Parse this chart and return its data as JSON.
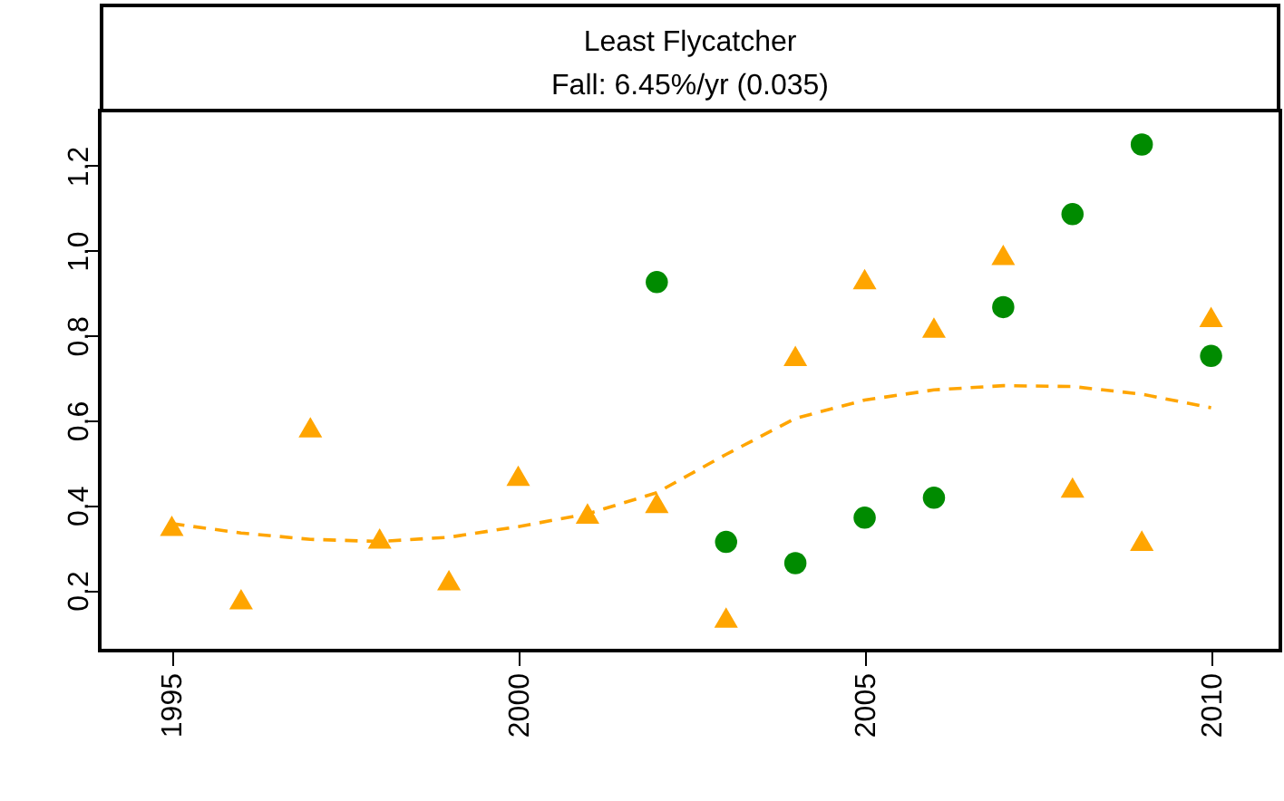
{
  "chart_data": {
    "type": "scatter",
    "title": "Least Flycatcher",
    "subtitle": "Fall: 6.45%/yr (0.035)",
    "xlim": [
      1993.96,
      2011
    ],
    "xticks": [
      1995,
      2000,
      2005,
      2010
    ],
    "ylim": [
      0.058,
      1.33
    ],
    "yticks": [
      0.2,
      0.4,
      0.6,
      0.8,
      {
        "value": 1,
        "label": "1.0"
      },
      1.2
    ],
    "grid": false,
    "series": [
      {
        "marker": "circle",
        "color": "#008b00",
        "x": [
          2002,
          2003,
          2004,
          2005,
          2006,
          2007,
          2008,
          2009,
          2010
        ],
        "values": [
          0.926,
          0.314,
          0.264,
          0.371,
          0.418,
          0.867,
          1.086,
          1.25,
          0.752
        ]
      },
      {
        "marker": "triangle",
        "color": "#ffa500",
        "x": [
          1995,
          1996,
          1997,
          1998,
          1999,
          2000,
          2001,
          2002,
          2003,
          2004,
          2005,
          2006,
          2007,
          2008,
          2009,
          2010
        ],
        "values": [
          0.352,
          0.179,
          0.584,
          0.322,
          0.224,
          0.47,
          0.381,
          0.406,
          0.136,
          0.752,
          0.933,
          0.819,
          0.99,
          0.442,
          0.317,
          0.844
        ]
      },
      {
        "type": "line",
        "marker": "none",
        "line_style": "dashed",
        "color": "#ffa500",
        "x": [
          1995,
          1996,
          1997,
          1998,
          1999,
          2000,
          2001,
          2002,
          2003,
          2004,
          2005,
          2006,
          2007,
          2008,
          2009,
          2010
        ],
        "values": [
          0.357,
          0.335,
          0.32,
          0.315,
          0.325,
          0.35,
          0.38,
          0.43,
          0.52,
          0.605,
          0.648,
          0.672,
          0.682,
          0.68,
          0.662,
          0.63
        ]
      }
    ]
  }
}
